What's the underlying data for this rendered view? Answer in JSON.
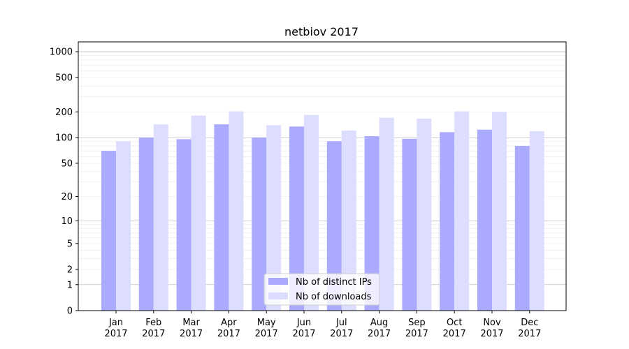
{
  "chart_data": {
    "type": "bar",
    "title": "netbiov 2017",
    "xlabel": "",
    "ylabel": "",
    "scale": "symlog",
    "ylim": [
      0,
      1300
    ],
    "yticks": [
      0,
      1,
      2,
      5,
      10,
      20,
      50,
      100,
      200,
      500,
      1000
    ],
    "ytick_labels": [
      "0",
      "1",
      "2",
      "5",
      "10",
      "20",
      "50",
      "100",
      "200",
      "500",
      "1000"
    ],
    "categories": [
      {
        "month": "Jan",
        "year": "2017"
      },
      {
        "month": "Feb",
        "year": "2017"
      },
      {
        "month": "Mar",
        "year": "2017"
      },
      {
        "month": "Apr",
        "year": "2017"
      },
      {
        "month": "May",
        "year": "2017"
      },
      {
        "month": "Jun",
        "year": "2017"
      },
      {
        "month": "Jul",
        "year": "2017"
      },
      {
        "month": "Aug",
        "year": "2017"
      },
      {
        "month": "Sep",
        "year": "2017"
      },
      {
        "month": "Oct",
        "year": "2017"
      },
      {
        "month": "Nov",
        "year": "2017"
      },
      {
        "month": "Dec",
        "year": "2017"
      }
    ],
    "series": [
      {
        "name": "Nb of distinct IPs",
        "color": "#aaaaff",
        "values": [
          70,
          100,
          96,
          143,
          100,
          135,
          91,
          104,
          97,
          116,
          124,
          80
        ]
      },
      {
        "name": "Nb of downloads",
        "color": "#ddddff",
        "values": [
          91,
          143,
          181,
          203,
          140,
          184,
          121,
          171,
          167,
          203,
          200,
          119
        ]
      }
    ],
    "grid": true,
    "legend_position": "bottom-center"
  }
}
